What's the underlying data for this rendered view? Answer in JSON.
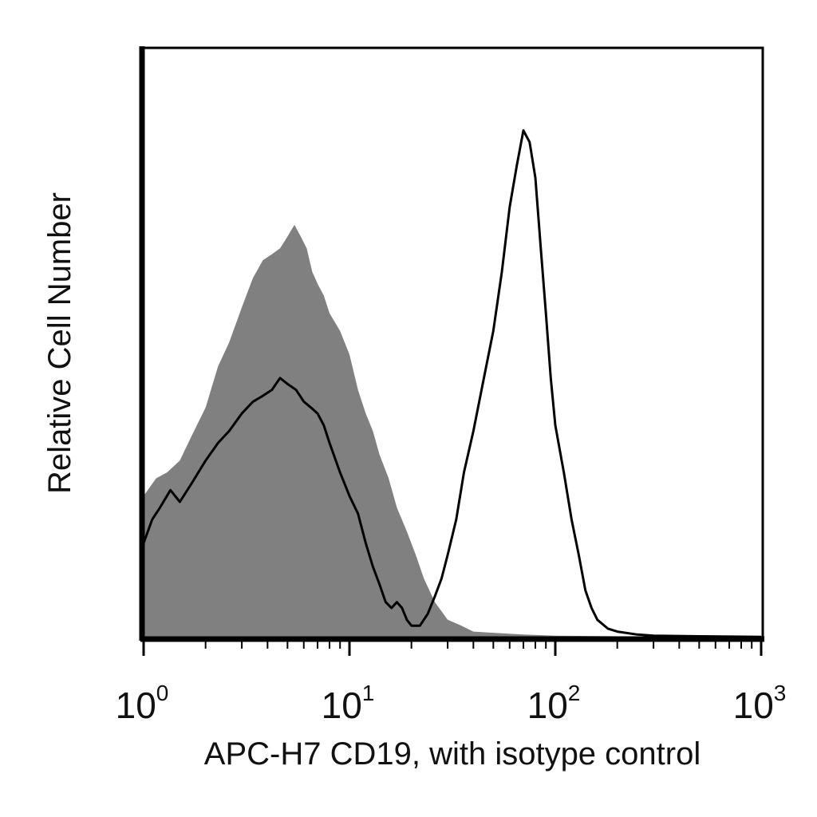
{
  "chart_data": {
    "type": "area",
    "title": "",
    "xlabel": "APC-H7 CD19, with isotype control",
    "ylabel": "Relative Cell Number",
    "x_scale": "log",
    "xlim": [
      1,
      1000
    ],
    "ylim": [
      0,
      100
    ],
    "grid": false,
    "x_ticks": [
      {
        "value": 1,
        "base": "10",
        "exp": "0"
      },
      {
        "value": 10,
        "base": "10",
        "exp": "1"
      },
      {
        "value": 100,
        "base": "10",
        "exp": "2"
      },
      {
        "value": 1000,
        "base": "10",
        "exp": "3"
      }
    ],
    "series": [
      {
        "role": "isotype control",
        "style": "filled",
        "color": "#808080",
        "x": [
          1.0,
          1.15,
          1.3,
          1.5,
          1.7,
          2.0,
          2.3,
          2.6,
          3.0,
          3.4,
          3.8,
          4.2,
          4.6,
          5.0,
          5.4,
          5.8,
          6.2,
          6.6,
          7.0,
          7.5,
          8.0,
          9.0,
          10.0,
          11.0,
          12.0,
          13.0,
          14.0,
          15.5,
          17.0,
          19.0,
          21.0,
          23.0,
          26.0,
          30.0,
          35.0,
          40.0,
          50.0,
          70.0,
          100.0,
          200.0,
          500.0,
          1000.0
        ],
        "y": [
          24,
          27,
          28,
          30,
          34,
          39,
          46,
          50,
          56,
          61,
          64,
          65,
          66,
          68,
          70,
          68,
          66,
          62,
          60,
          58,
          55,
          52,
          48,
          42,
          38,
          35,
          31,
          27,
          22,
          18,
          14,
          10,
          6,
          3,
          2,
          1,
          0.8,
          0.5,
          0.3,
          0.2,
          0.1,
          0.1
        ]
      },
      {
        "role": "APC-H7 CD19",
        "style": "line",
        "color": "#000000",
        "x": [
          1.0,
          1.1,
          1.2,
          1.35,
          1.5,
          1.7,
          2.0,
          2.3,
          2.6,
          3.0,
          3.4,
          3.8,
          4.2,
          4.6,
          5.0,
          5.5,
          6.0,
          6.5,
          7.0,
          7.5,
          8.0,
          9.0,
          10.0,
          11.0,
          12.0,
          13.0,
          14.0,
          15.0,
          16.0,
          17.0,
          18.0,
          19.0,
          20.0,
          22.0,
          24.0,
          26.0,
          28.0,
          30.0,
          33.0,
          36.0,
          40.0,
          45.0,
          50.0,
          55.0,
          60.0,
          65.0,
          70.0,
          75.0,
          80.0,
          85.0,
          90.0,
          95.0,
          100.0,
          110.0,
          120.0,
          130.0,
          140.0,
          150.0,
          160.0,
          180.0,
          200.0,
          250.0,
          300.0,
          500.0,
          1000.0
        ],
        "y": [
          16,
          20,
          22,
          25,
          23,
          26,
          30,
          33,
          35,
          38,
          40,
          41,
          42,
          44,
          43,
          42,
          40,
          39,
          38,
          36,
          33,
          28,
          24,
          21,
          16,
          12,
          9,
          6,
          5,
          6,
          5,
          3,
          2,
          2,
          4,
          7,
          10,
          14,
          20,
          28,
          35,
          44,
          52,
          62,
          73,
          80,
          86,
          84,
          78,
          66,
          55,
          44,
          36,
          28,
          20,
          14,
          8,
          5,
          3,
          1.5,
          1,
          0.5,
          0.3,
          0.2,
          0.1
        ]
      }
    ]
  }
}
